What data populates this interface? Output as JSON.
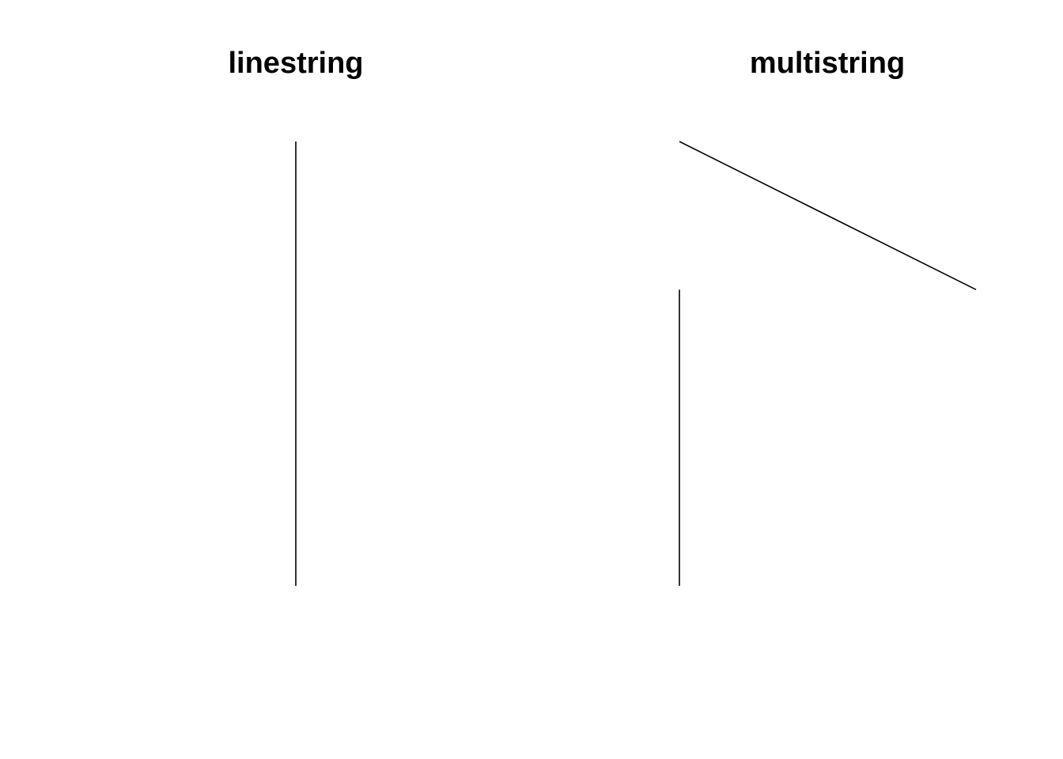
{
  "chart_data": [
    {
      "type": "line",
      "title": "linestring",
      "series": [
        {
          "points": [
            [
              0,
              0
            ],
            [
              0,
              1
            ]
          ]
        }
      ]
    },
    {
      "type": "line",
      "title": "multistring",
      "series": [
        {
          "points": [
            [
              0,
              0
            ],
            [
              0,
              1
            ]
          ]
        },
        {
          "points": [
            [
              0,
              1.5
            ],
            [
              1,
              1
            ]
          ]
        }
      ]
    }
  ],
  "colors": {
    "line": "#000000",
    "background": "#ffffff"
  }
}
